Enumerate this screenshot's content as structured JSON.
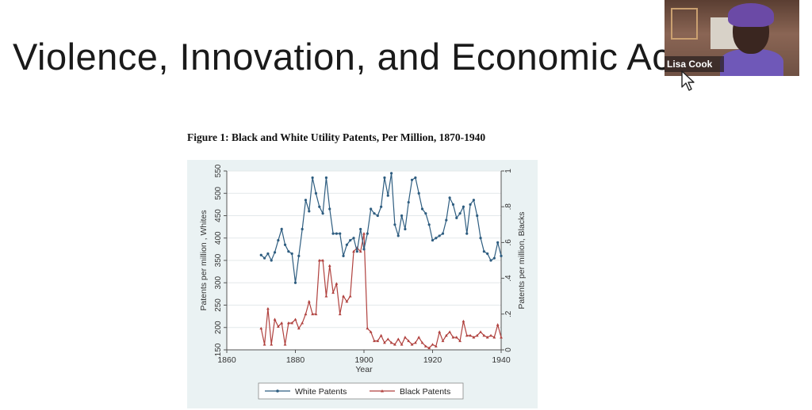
{
  "slide": {
    "title": "Violence, Innovation, and Economic Act",
    "figure_caption": "Figure 1: Black and White Utility Patents, Per Million, 1870-1940"
  },
  "participant": {
    "name": "Lisa Cook",
    "icon": "cursor-arrow-icon"
  },
  "chart_data": {
    "type": "line",
    "xlabel": "Year",
    "ylabel_left": "Patents per million , Whites",
    "ylabel_right": "Patents per million, Blacks",
    "xlim": [
      1860,
      1940
    ],
    "ylim_left": [
      150,
      550
    ],
    "ylim_right": [
      0,
      1
    ],
    "x_ticks": [
      1860,
      1880,
      1900,
      1920,
      1940
    ],
    "y_ticks_left": [
      150,
      200,
      250,
      300,
      350,
      400,
      450,
      500,
      550
    ],
    "y_ticks_right": [
      0,
      0.2,
      0.4,
      0.6,
      0.8,
      1
    ],
    "y_tick_labels_right": [
      "0",
      ".2",
      ".4",
      ".6",
      ".8",
      "1"
    ],
    "legend_position": "bottom",
    "grid": true,
    "colors": {
      "white": "#2e5d80",
      "black": "#b0413e",
      "panel": "#eaf2f3"
    },
    "series": [
      {
        "name": "White Patents",
        "axis": "left",
        "x": [
          1870,
          1871,
          1872,
          1873,
          1874,
          1875,
          1876,
          1877,
          1878,
          1879,
          1880,
          1881,
          1882,
          1883,
          1884,
          1885,
          1886,
          1887,
          1888,
          1889,
          1890,
          1891,
          1892,
          1893,
          1894,
          1895,
          1896,
          1897,
          1898,
          1899,
          1900,
          1901,
          1902,
          1903,
          1904,
          1905,
          1906,
          1907,
          1908,
          1909,
          1910,
          1911,
          1912,
          1913,
          1914,
          1915,
          1916,
          1917,
          1918,
          1919,
          1920,
          1921,
          1922,
          1923,
          1924,
          1925,
          1926,
          1927,
          1928,
          1929,
          1930,
          1931,
          1932,
          1933,
          1934,
          1935,
          1936,
          1937,
          1938,
          1939,
          1940
        ],
        "values": [
          362,
          355,
          365,
          350,
          368,
          395,
          420,
          385,
          370,
          365,
          300,
          360,
          420,
          485,
          460,
          535,
          500,
          470,
          455,
          535,
          465,
          410,
          410,
          410,
          360,
          385,
          395,
          400,
          370,
          420,
          375,
          410,
          465,
          455,
          450,
          470,
          535,
          495,
          545,
          430,
          405,
          450,
          420,
          480,
          530,
          535,
          500,
          465,
          455,
          430,
          395,
          400,
          405,
          410,
          440,
          490,
          475,
          445,
          455,
          470,
          410,
          475,
          485,
          450,
          400,
          370,
          365,
          350,
          355,
          390,
          360
        ]
      },
      {
        "name": "Black Patents",
        "axis": "right",
        "x": [
          1870,
          1871,
          1872,
          1873,
          1874,
          1875,
          1876,
          1877,
          1878,
          1879,
          1880,
          1881,
          1882,
          1883,
          1884,
          1885,
          1886,
          1887,
          1888,
          1889,
          1890,
          1891,
          1892,
          1893,
          1894,
          1895,
          1896,
          1897,
          1898,
          1899,
          1900,
          1901,
          1902,
          1903,
          1904,
          1905,
          1906,
          1907,
          1908,
          1909,
          1910,
          1911,
          1912,
          1913,
          1914,
          1915,
          1916,
          1917,
          1918,
          1919,
          1920,
          1921,
          1922,
          1923,
          1924,
          1925,
          1926,
          1927,
          1928,
          1929,
          1930,
          1931,
          1932,
          1933,
          1934,
          1935,
          1936,
          1937,
          1938,
          1939,
          1940
        ],
        "values": [
          0.12,
          0.03,
          0.23,
          0.03,
          0.17,
          0.13,
          0.15,
          0.03,
          0.15,
          0.15,
          0.17,
          0.12,
          0.15,
          0.2,
          0.27,
          0.2,
          0.2,
          0.5,
          0.5,
          0.3,
          0.47,
          0.32,
          0.37,
          0.2,
          0.3,
          0.27,
          0.3,
          0.55,
          0.57,
          0.55,
          0.65,
          0.12,
          0.1,
          0.05,
          0.05,
          0.08,
          0.04,
          0.06,
          0.04,
          0.03,
          0.06,
          0.03,
          0.07,
          0.05,
          0.03,
          0.04,
          0.07,
          0.04,
          0.02,
          0.01,
          0.03,
          0.02,
          0.1,
          0.05,
          0.08,
          0.1,
          0.07,
          0.07,
          0.05,
          0.16,
          0.08,
          0.08,
          0.07,
          0.08,
          0.1,
          0.08,
          0.07,
          0.08,
          0.07,
          0.14,
          0.07
        ]
      }
    ]
  }
}
